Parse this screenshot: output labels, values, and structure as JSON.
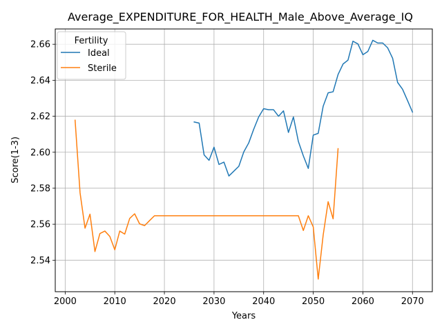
{
  "chart_data": {
    "type": "line",
    "title": "Average_EXPENDITURE_FOR_HEALTH_Male_Above_Average_IQ",
    "xlabel": "Years",
    "ylabel": "Score(1-3)",
    "xlim": [
      1998,
      2074
    ],
    "ylim": [
      2.5225,
      2.6685
    ],
    "xticks": [
      2000,
      2010,
      2020,
      2030,
      2040,
      2050,
      2060,
      2070
    ],
    "yticks": [
      2.54,
      2.56,
      2.58,
      2.6,
      2.62,
      2.64,
      2.66
    ],
    "ytick_labels": [
      "2.54",
      "2.56",
      "2.58",
      "2.60",
      "2.62",
      "2.64",
      "2.66"
    ],
    "grid": true,
    "legend": {
      "title": "Fertility",
      "position": "upper-left"
    },
    "series": [
      {
        "name": "Ideal",
        "color": "#1f77b4",
        "x": [
          2026,
          2027,
          2028,
          2029,
          2030,
          2031,
          2032,
          2033,
          2034,
          2035,
          2036,
          2037,
          2038,
          2039,
          2040,
          2041,
          2042,
          2043,
          2044,
          2045,
          2046,
          2047,
          2048,
          2049,
          2050,
          2051,
          2052,
          2053,
          2054,
          2055,
          2056,
          2057,
          2058,
          2059,
          2060,
          2061,
          2062,
          2063,
          2064,
          2065,
          2066,
          2067,
          2068,
          2069,
          2070
        ],
        "values": [
          2.6168,
          2.6162,
          2.5985,
          2.5955,
          2.6028,
          2.5932,
          2.5945,
          2.5868,
          2.5895,
          2.5922,
          2.6002,
          2.6052,
          2.6128,
          2.6196,
          2.6242,
          2.6236,
          2.6236,
          2.62,
          2.623,
          2.611,
          2.6196,
          2.606,
          2.598,
          2.591,
          2.6095,
          2.6105,
          2.6256,
          2.633,
          2.6336,
          2.6432,
          2.649,
          2.6512,
          2.6617,
          2.6602,
          2.6542,
          2.656,
          2.6622,
          2.6607,
          2.6607,
          2.658,
          2.6522,
          2.6388,
          2.635,
          2.6287,
          2.6223
        ]
      },
      {
        "name": "Sterile",
        "color": "#ff7f0e",
        "x": [
          2002,
          2003,
          2004,
          2005,
          2006,
          2007,
          2008,
          2009,
          2010,
          2011,
          2012,
          2013,
          2014,
          2015,
          2016,
          2017,
          2018,
          2019,
          2020,
          2021,
          2022,
          2023,
          2024,
          2025,
          2026,
          2027,
          2028,
          2029,
          2030,
          2031,
          2032,
          2033,
          2034,
          2035,
          2036,
          2037,
          2038,
          2039,
          2040,
          2041,
          2042,
          2043,
          2044,
          2045,
          2046,
          2047,
          2048,
          2049,
          2050,
          2051,
          2052,
          2053,
          2054,
          2055
        ],
        "values": [
          2.6178,
          2.5775,
          2.5578,
          2.5656,
          2.5448,
          2.5548,
          2.5562,
          2.5532,
          2.5458,
          2.5562,
          2.5545,
          2.5632,
          2.5658,
          2.5602,
          2.5592,
          2.562,
          2.5647,
          2.5647,
          2.5647,
          2.5647,
          2.5647,
          2.5647,
          2.5647,
          2.5647,
          2.5647,
          2.5647,
          2.5647,
          2.5647,
          2.5647,
          2.5647,
          2.5647,
          2.5647,
          2.5647,
          2.5647,
          2.5647,
          2.5647,
          2.5647,
          2.5647,
          2.5647,
          2.5647,
          2.5647,
          2.5647,
          2.5647,
          2.5647,
          2.5647,
          2.5647,
          2.5565,
          2.5647,
          2.5585,
          2.5295,
          2.554,
          2.5725,
          2.563,
          2.602
        ]
      }
    ]
  }
}
